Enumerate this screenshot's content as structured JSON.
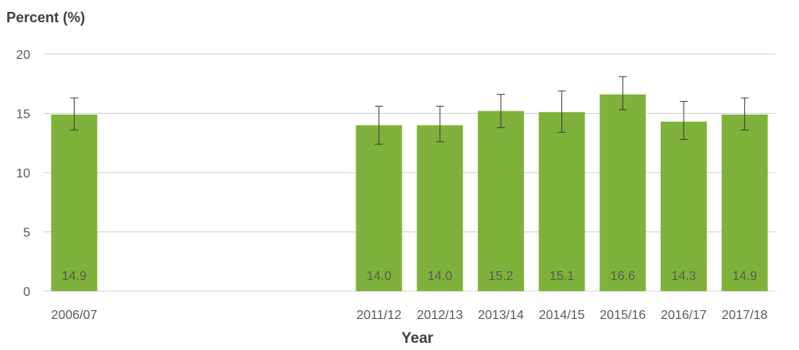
{
  "chart_data": {
    "type": "bar",
    "ylabel": "Percent (%)",
    "xlabel": "Year",
    "ylim": [
      0,
      20
    ],
    "yticks": [
      0,
      5,
      10,
      15,
      20
    ],
    "grid": true,
    "bar_color": "#7fb23a",
    "categories": [
      "2006/07",
      "",
      "",
      "",
      "",
      "2011/12",
      "2012/13",
      "2013/14",
      "2014/15",
      "2015/16",
      "2016/17",
      "2017/18"
    ],
    "values": [
      14.9,
      null,
      null,
      null,
      null,
      14.0,
      14.0,
      15.2,
      15.1,
      16.6,
      14.3,
      14.9
    ],
    "data_labels": [
      "14.9",
      "",
      "",
      "",
      "",
      "14.0",
      "14.0",
      "15.2",
      "15.1",
      "16.6",
      "14.3",
      "14.9"
    ],
    "error_low": [
      13.6,
      null,
      null,
      null,
      null,
      12.4,
      12.6,
      13.8,
      13.4,
      15.3,
      12.8,
      13.6
    ],
    "error_high": [
      16.3,
      null,
      null,
      null,
      null,
      15.6,
      15.6,
      16.6,
      16.9,
      18.1,
      16.0,
      16.3
    ]
  }
}
